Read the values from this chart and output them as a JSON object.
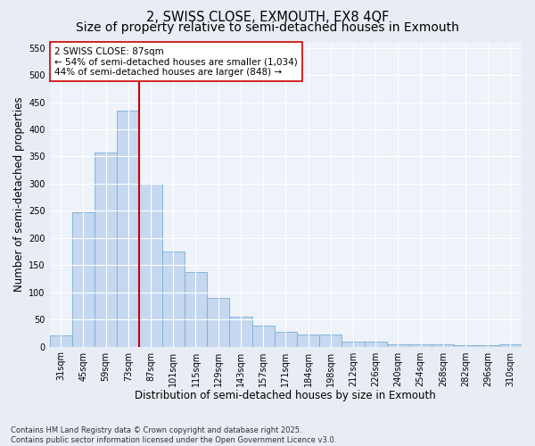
{
  "title": "2, SWISS CLOSE, EXMOUTH, EX8 4QF",
  "subtitle": "Size of property relative to semi-detached houses in Exmouth",
  "xlabel": "Distribution of semi-detached houses by size in Exmouth",
  "ylabel": "Number of semi-detached properties",
  "categories": [
    "31sqm",
    "45sqm",
    "59sqm",
    "73sqm",
    "87sqm",
    "101sqm",
    "115sqm",
    "129sqm",
    "143sqm",
    "157sqm",
    "171sqm",
    "184sqm",
    "198sqm",
    "212sqm",
    "226sqm",
    "240sqm",
    "254sqm",
    "268sqm",
    "282sqm",
    "296sqm",
    "310sqm"
  ],
  "values": [
    20,
    248,
    358,
    435,
    300,
    175,
    138,
    90,
    55,
    38,
    28,
    22,
    22,
    10,
    10,
    5,
    5,
    4,
    3,
    2,
    5
  ],
  "bar_color": "#c5d8f0",
  "bar_edge_color": "#7aadd4",
  "red_line_x": 3.5,
  "marker_label": "2 SWISS CLOSE: 87sqm",
  "annotation_line1": "← 54% of semi-detached houses are smaller (1,034)",
  "annotation_line2": "44% of semi-detached houses are larger (848) →",
  "marker_color": "#cc0000",
  "ylim": [
    0,
    560
  ],
  "yticks": [
    0,
    50,
    100,
    150,
    200,
    250,
    300,
    350,
    400,
    450,
    500,
    550
  ],
  "background_color": "#e8edf5",
  "plot_bg_color": "#eef2f9",
  "footer": "Contains HM Land Registry data © Crown copyright and database right 2025.\nContains public sector information licensed under the Open Government Licence v3.0.",
  "title_fontsize": 10.5,
  "xlabel_fontsize": 8.5,
  "ylabel_fontsize": 8.5,
  "tick_fontsize": 7,
  "annotation_fontsize": 7.5,
  "footer_fontsize": 6
}
